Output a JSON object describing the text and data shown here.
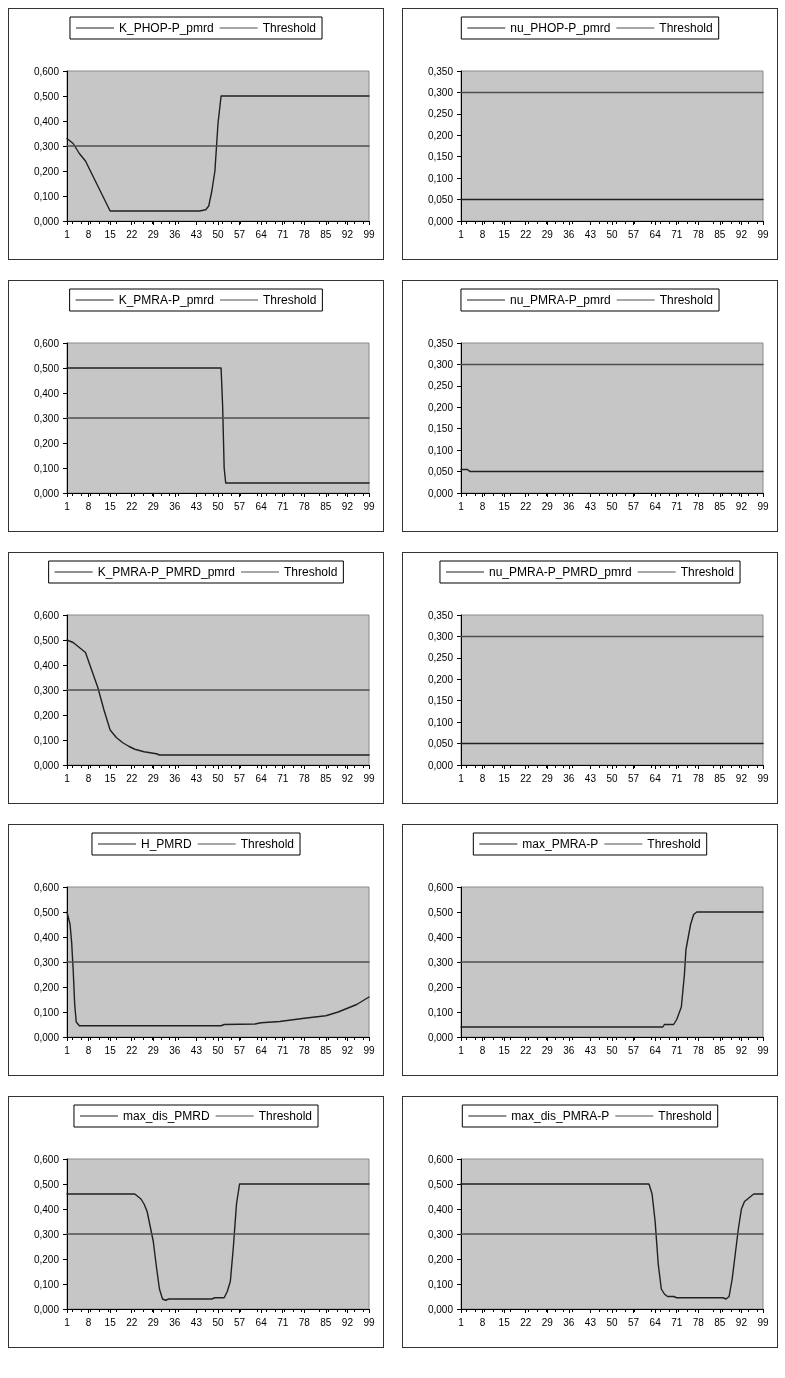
{
  "chart_data": [
    {
      "type": "line",
      "legend": "top",
      "marker": "none",
      "xlim": [
        1,
        99
      ],
      "xticks": [
        1,
        8,
        15,
        22,
        29,
        36,
        43,
        50,
        57,
        64,
        71,
        78,
        85,
        92,
        99
      ],
      "ylim": [
        0,
        0.6
      ],
      "yticks": [
        {
          "value": 0,
          "label": "0,000"
        },
        {
          "value": 0.1,
          "label": "0,100"
        },
        {
          "value": 0.2,
          "label": "0,200"
        },
        {
          "value": 0.3,
          "label": "0,300"
        },
        {
          "value": 0.4,
          "label": "0,400"
        },
        {
          "value": 0.5,
          "label": "0,500"
        },
        {
          "value": 0.6,
          "label": "0,600"
        }
      ],
      "series": [
        {
          "name": "K_PHOP-P_pmrd",
          "color": "#202020",
          "x": [
            1,
            3,
            5,
            7,
            9,
            11,
            13,
            15,
            44,
            46,
            47,
            48,
            49,
            50,
            51,
            99
          ],
          "values": [
            0.33,
            0.31,
            0.27,
            0.24,
            0.19,
            0.14,
            0.09,
            0.04,
            0.04,
            0.045,
            0.06,
            0.12,
            0.2,
            0.39,
            0.5,
            0.5
          ]
        },
        {
          "name": "Threshold",
          "color": "#505050",
          "x": [
            1,
            99
          ],
          "values": [
            0.3,
            0.3
          ]
        }
      ]
    },
    {
      "type": "line",
      "legend": "top",
      "marker": "none",
      "xlim": [
        1,
        99
      ],
      "xticks": [
        1,
        8,
        15,
        22,
        29,
        36,
        43,
        50,
        57,
        64,
        71,
        78,
        85,
        92,
        99
      ],
      "ylim": [
        0,
        0.35
      ],
      "yticks": [
        {
          "value": 0,
          "label": "0,000"
        },
        {
          "value": 0.05,
          "label": "0,050"
        },
        {
          "value": 0.1,
          "label": "0,100"
        },
        {
          "value": 0.15,
          "label": "0,150"
        },
        {
          "value": 0.2,
          "label": "0,200"
        },
        {
          "value": 0.25,
          "label": "0,250"
        },
        {
          "value": 0.3,
          "label": "0,300"
        },
        {
          "value": 0.35,
          "label": "0,350"
        }
      ],
      "series": [
        {
          "name": "nu_PHOP-P_pmrd",
          "color": "#202020",
          "x": [
            1,
            99
          ],
          "values": [
            0.05,
            0.05
          ]
        },
        {
          "name": "Threshold",
          "color": "#505050",
          "x": [
            1,
            99
          ],
          "values": [
            0.3,
            0.3
          ]
        }
      ]
    },
    {
      "type": "line",
      "legend": "top",
      "marker": "none",
      "xlim": [
        1,
        99
      ],
      "xticks": [
        1,
        8,
        15,
        22,
        29,
        36,
        43,
        50,
        57,
        64,
        71,
        78,
        85,
        92,
        99
      ],
      "ylim": [
        0,
        0.6
      ],
      "yticks": [
        {
          "value": 0,
          "label": "0,000"
        },
        {
          "value": 0.1,
          "label": "0,100"
        },
        {
          "value": 0.2,
          "label": "0,200"
        },
        {
          "value": 0.3,
          "label": "0,300"
        },
        {
          "value": 0.4,
          "label": "0,400"
        },
        {
          "value": 0.5,
          "label": "0,500"
        },
        {
          "value": 0.6,
          "label": "0,600"
        }
      ],
      "series": [
        {
          "name": "K_PMRA-P_pmrd",
          "color": "#202020",
          "x": [
            1,
            51,
            51.5,
            52,
            52.5,
            99
          ],
          "values": [
            0.5,
            0.5,
            0.35,
            0.1,
            0.04,
            0.04
          ]
        },
        {
          "name": "Threshold",
          "color": "#505050",
          "x": [
            1,
            99
          ],
          "values": [
            0.3,
            0.3
          ]
        }
      ]
    },
    {
      "type": "line",
      "legend": "top",
      "marker": "none",
      "xlim": [
        1,
        99
      ],
      "xticks": [
        1,
        8,
        15,
        22,
        29,
        36,
        43,
        50,
        57,
        64,
        71,
        78,
        85,
        92,
        99
      ],
      "ylim": [
        0,
        0.35
      ],
      "yticks": [
        {
          "value": 0,
          "label": "0,000"
        },
        {
          "value": 0.05,
          "label": "0,050"
        },
        {
          "value": 0.1,
          "label": "0,100"
        },
        {
          "value": 0.15,
          "label": "0,150"
        },
        {
          "value": 0.2,
          "label": "0,200"
        },
        {
          "value": 0.25,
          "label": "0,250"
        },
        {
          "value": 0.3,
          "label": "0,300"
        },
        {
          "value": 0.35,
          "label": "0,350"
        }
      ],
      "series": [
        {
          "name": "nu_PMRA-P_pmrd",
          "color": "#202020",
          "x": [
            1,
            3,
            4,
            99
          ],
          "values": [
            0.055,
            0.055,
            0.05,
            0.05
          ]
        },
        {
          "name": "Threshold",
          "color": "#505050",
          "x": [
            1,
            99
          ],
          "values": [
            0.3,
            0.3
          ]
        }
      ]
    },
    {
      "type": "line",
      "legend": "top",
      "marker": "none",
      "xlim": [
        1,
        99
      ],
      "xticks": [
        1,
        8,
        15,
        22,
        29,
        36,
        43,
        50,
        57,
        64,
        71,
        78,
        85,
        92,
        99
      ],
      "ylim": [
        0,
        0.6
      ],
      "yticks": [
        {
          "value": 0,
          "label": "0,000"
        },
        {
          "value": 0.1,
          "label": "0,100"
        },
        {
          "value": 0.2,
          "label": "0,200"
        },
        {
          "value": 0.3,
          "label": "0,300"
        },
        {
          "value": 0.4,
          "label": "0,400"
        },
        {
          "value": 0.5,
          "label": "0,500"
        },
        {
          "value": 0.6,
          "label": "0,600"
        }
      ],
      "series": [
        {
          "name": "K_PMRA-P_PMRD_pmrd",
          "color": "#202020",
          "x": [
            1,
            3,
            5,
            7,
            9,
            11,
            13,
            15,
            17,
            19,
            21,
            23,
            26,
            30,
            31,
            99
          ],
          "values": [
            0.5,
            0.49,
            0.47,
            0.45,
            0.38,
            0.31,
            0.22,
            0.14,
            0.11,
            0.09,
            0.075,
            0.063,
            0.053,
            0.045,
            0.04,
            0.04
          ]
        },
        {
          "name": "Threshold",
          "color": "#505050",
          "x": [
            1,
            99
          ],
          "values": [
            0.3,
            0.3
          ]
        }
      ]
    },
    {
      "type": "line",
      "legend": "top",
      "marker": "none",
      "xlim": [
        1,
        99
      ],
      "xticks": [
        1,
        8,
        15,
        22,
        29,
        36,
        43,
        50,
        57,
        64,
        71,
        78,
        85,
        92,
        99
      ],
      "ylim": [
        0,
        0.35
      ],
      "yticks": [
        {
          "value": 0,
          "label": "0,000"
        },
        {
          "value": 0.05,
          "label": "0,050"
        },
        {
          "value": 0.1,
          "label": "0,100"
        },
        {
          "value": 0.15,
          "label": "0,150"
        },
        {
          "value": 0.2,
          "label": "0,200"
        },
        {
          "value": 0.25,
          "label": "0,250"
        },
        {
          "value": 0.3,
          "label": "0,300"
        },
        {
          "value": 0.35,
          "label": "0,350"
        }
      ],
      "series": [
        {
          "name": "nu_PMRA-P_PMRD_pmrd",
          "color": "#202020",
          "x": [
            1,
            99
          ],
          "values": [
            0.05,
            0.05
          ]
        },
        {
          "name": "Threshold",
          "color": "#505050",
          "x": [
            1,
            99
          ],
          "values": [
            0.3,
            0.3
          ]
        }
      ]
    },
    {
      "type": "line",
      "legend": "top",
      "marker": "none",
      "xlim": [
        1,
        99
      ],
      "xticks": [
        1,
        8,
        15,
        22,
        29,
        36,
        43,
        50,
        57,
        64,
        71,
        78,
        85,
        92,
        99
      ],
      "ylim": [
        0,
        0.6
      ],
      "yticks": [
        {
          "value": 0,
          "label": "0,000"
        },
        {
          "value": 0.1,
          "label": "0,100"
        },
        {
          "value": 0.2,
          "label": "0,200"
        },
        {
          "value": 0.3,
          "label": "0,300"
        },
        {
          "value": 0.4,
          "label": "0,400"
        },
        {
          "value": 0.5,
          "label": "0,500"
        },
        {
          "value": 0.6,
          "label": "0,600"
        }
      ],
      "series": [
        {
          "name": "H_PMRD",
          "color": "#202020",
          "x": [
            1,
            2,
            2.5,
            3,
            3.5,
            4,
            5,
            51,
            52,
            62,
            64,
            70,
            78,
            85,
            89,
            92,
            95,
            99
          ],
          "values": [
            0.5,
            0.45,
            0.38,
            0.27,
            0.13,
            0.06,
            0.045,
            0.045,
            0.05,
            0.052,
            0.057,
            0.062,
            0.075,
            0.085,
            0.1,
            0.115,
            0.13,
            0.16
          ]
        },
        {
          "name": "Threshold",
          "color": "#505050",
          "x": [
            1,
            99
          ],
          "values": [
            0.3,
            0.3
          ]
        }
      ]
    },
    {
      "type": "line",
      "legend": "top",
      "marker": "none",
      "xlim": [
        1,
        99
      ],
      "xticks": [
        1,
        8,
        15,
        22,
        29,
        36,
        43,
        50,
        57,
        64,
        71,
        78,
        85,
        92,
        99
      ],
      "ylim": [
        0,
        0.6
      ],
      "yticks": [
        {
          "value": 0,
          "label": "0,000"
        },
        {
          "value": 0.1,
          "label": "0,100"
        },
        {
          "value": 0.2,
          "label": "0,200"
        },
        {
          "value": 0.3,
          "label": "0,300"
        },
        {
          "value": 0.4,
          "label": "0,400"
        },
        {
          "value": 0.5,
          "label": "0,500"
        },
        {
          "value": 0.6,
          "label": "0,600"
        }
      ],
      "series": [
        {
          "name": "max_PMRA-P",
          "color": "#202020",
          "x": [
            1,
            66.5,
            67,
            70,
            71,
            72.5,
            73.5,
            74,
            75.5,
            76.5,
            77.5,
            99
          ],
          "values": [
            0.04,
            0.04,
            0.05,
            0.05,
            0.07,
            0.12,
            0.25,
            0.35,
            0.45,
            0.49,
            0.5,
            0.5
          ]
        },
        {
          "name": "Threshold",
          "color": "#505050",
          "x": [
            1,
            99
          ],
          "values": [
            0.3,
            0.3
          ]
        }
      ]
    },
    {
      "type": "line",
      "legend": "top",
      "marker": "none",
      "xlim": [
        1,
        99
      ],
      "xticks": [
        1,
        8,
        15,
        22,
        29,
        36,
        43,
        50,
        57,
        64,
        71,
        78,
        85,
        92,
        99
      ],
      "ylim": [
        0,
        0.6
      ],
      "yticks": [
        {
          "value": 0,
          "label": "0,000"
        },
        {
          "value": 0.1,
          "label": "0,100"
        },
        {
          "value": 0.2,
          "label": "0,200"
        },
        {
          "value": 0.3,
          "label": "0,300"
        },
        {
          "value": 0.4,
          "label": "0,400"
        },
        {
          "value": 0.5,
          "label": "0,500"
        },
        {
          "value": 0.6,
          "label": "0,600"
        }
      ],
      "series": [
        {
          "name": "max_dis_PMRD",
          "color": "#202020",
          "x": [
            1,
            23,
            25,
            26,
            27,
            28,
            29,
            30,
            31,
            32,
            33,
            34,
            48,
            49,
            52,
            53,
            54,
            55,
            56,
            57,
            99
          ],
          "values": [
            0.46,
            0.46,
            0.44,
            0.42,
            0.39,
            0.33,
            0.27,
            0.17,
            0.08,
            0.04,
            0.035,
            0.04,
            0.04,
            0.045,
            0.045,
            0.07,
            0.11,
            0.25,
            0.42,
            0.5,
            0.5
          ]
        },
        {
          "name": "Threshold",
          "color": "#505050",
          "x": [
            1,
            99
          ],
          "values": [
            0.3,
            0.3
          ]
        }
      ]
    },
    {
      "type": "line",
      "legend": "top",
      "marker": "none",
      "xlim": [
        1,
        99
      ],
      "xticks": [
        1,
        8,
        15,
        22,
        29,
        36,
        43,
        50,
        57,
        64,
        71,
        78,
        85,
        92,
        99
      ],
      "ylim": [
        0,
        0.6
      ],
      "yticks": [
        {
          "value": 0,
          "label": "0,000"
        },
        {
          "value": 0.1,
          "label": "0,100"
        },
        {
          "value": 0.2,
          "label": "0,200"
        },
        {
          "value": 0.3,
          "label": "0,300"
        },
        {
          "value": 0.4,
          "label": "0,400"
        },
        {
          "value": 0.5,
          "label": "0,500"
        },
        {
          "value": 0.6,
          "label": "0,600"
        }
      ],
      "series": [
        {
          "name": "max_dis_PMRA-P",
          "color": "#202020",
          "x": [
            1,
            62,
            63,
            64,
            65,
            66,
            67,
            68,
            70,
            71,
            86,
            87,
            88,
            89,
            90,
            91,
            92,
            93,
            95,
            96,
            99
          ],
          "values": [
            0.5,
            0.5,
            0.46,
            0.35,
            0.18,
            0.08,
            0.06,
            0.05,
            0.05,
            0.045,
            0.045,
            0.04,
            0.05,
            0.12,
            0.22,
            0.32,
            0.4,
            0.43,
            0.45,
            0.46,
            0.46
          ]
        },
        {
          "name": "Threshold",
          "color": "#505050",
          "x": [
            1,
            99
          ],
          "values": [
            0.3,
            0.3
          ]
        }
      ]
    }
  ]
}
